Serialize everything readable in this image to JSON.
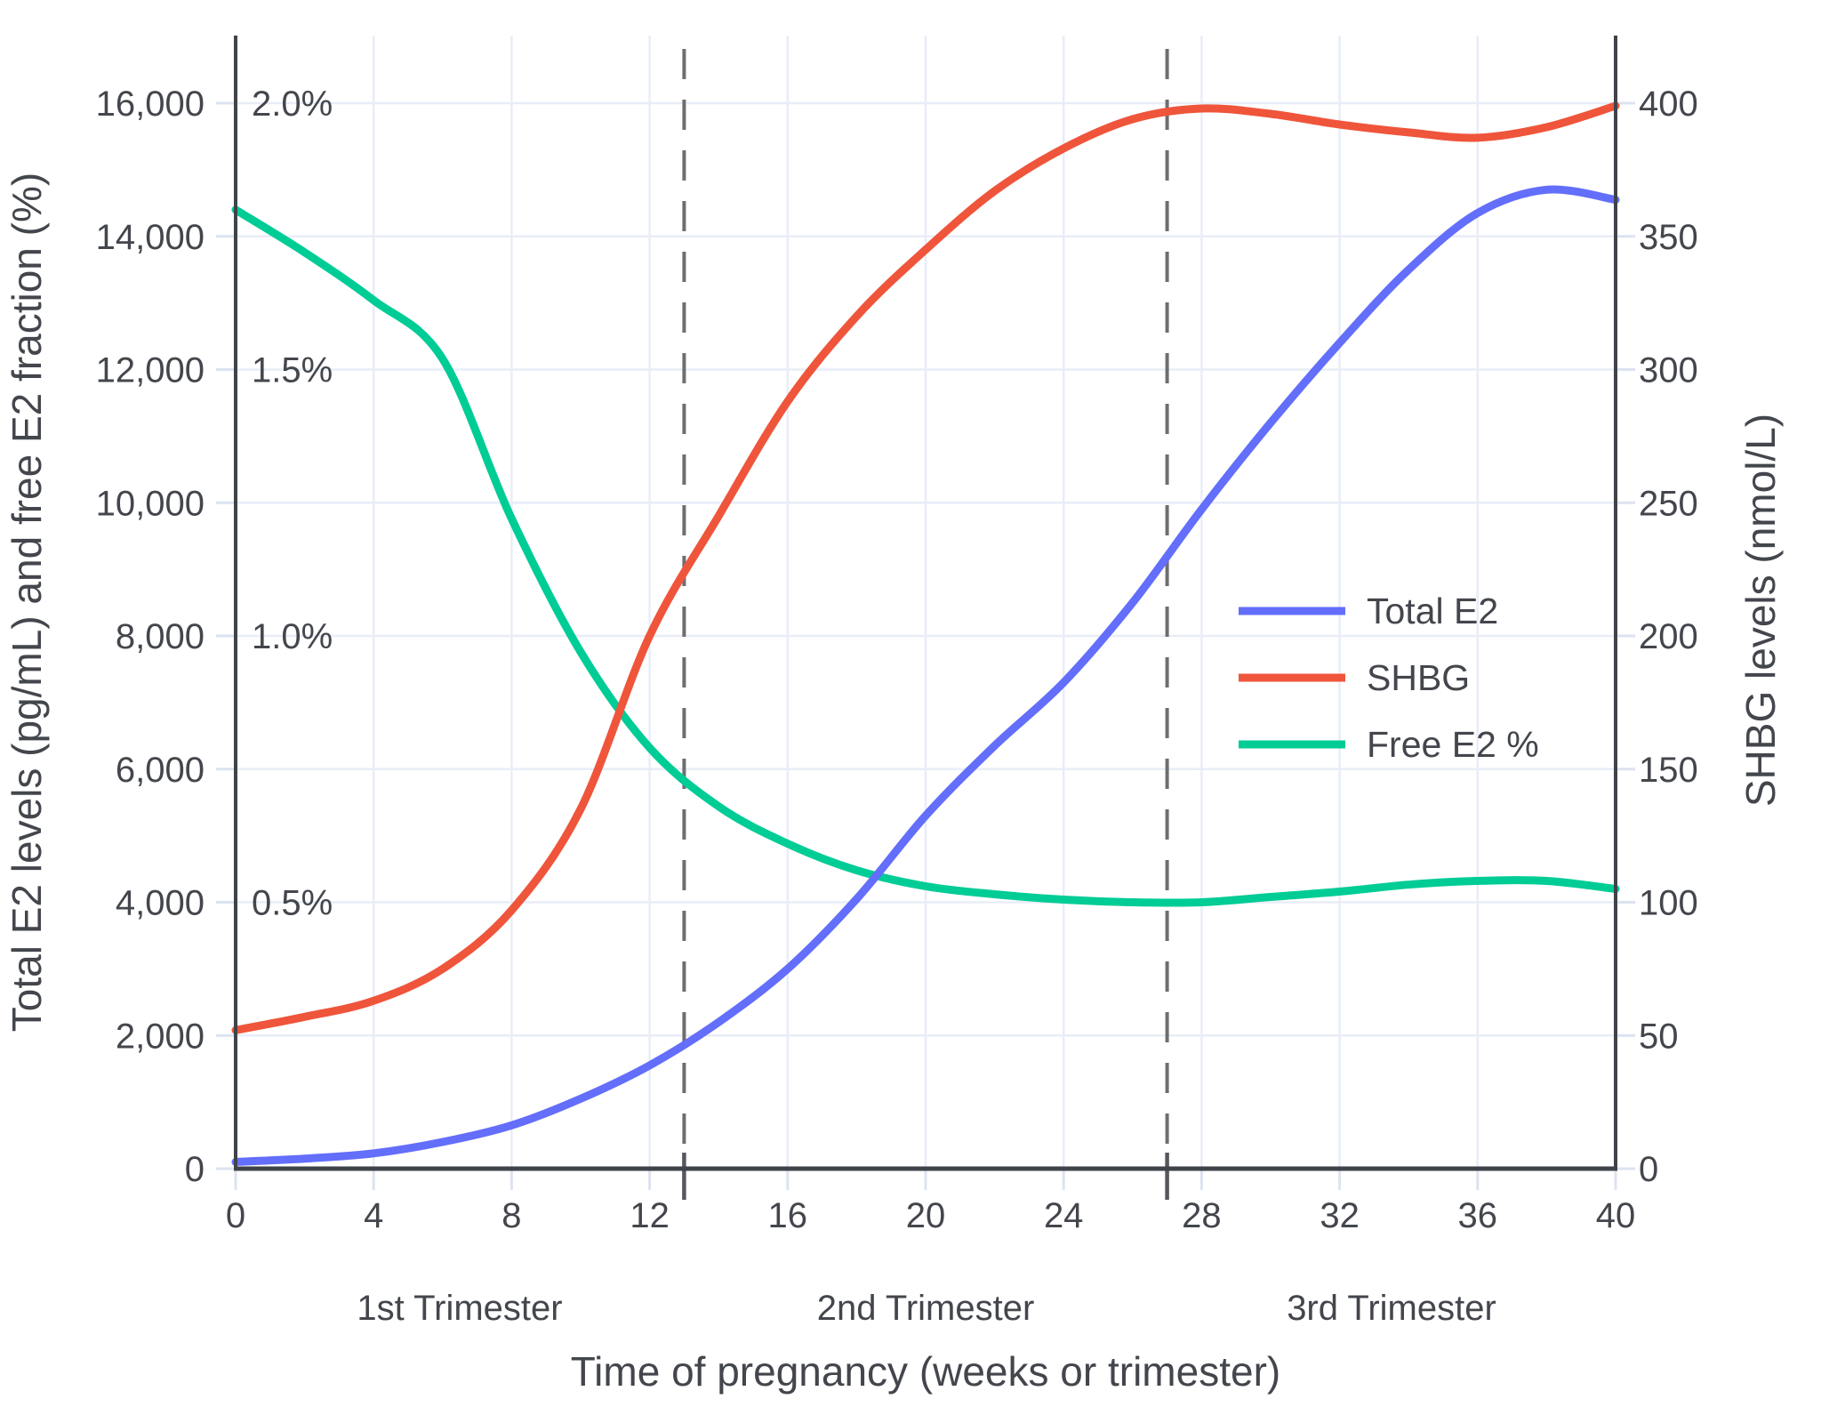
{
  "chart_data": {
    "type": "line",
    "title": "",
    "xlabel": "Time of pregnancy (weeks or trimester)",
    "ylabel_left": "Total E2 levels (pg/mL) and free E2 fraction (%)",
    "ylabel_right": "SHBG levels (nmol/L)",
    "x_weeks": [
      0,
      2,
      4,
      6,
      8,
      10,
      12,
      14,
      16,
      18,
      20,
      22,
      24,
      26,
      28,
      30,
      32,
      34,
      36,
      38,
      40
    ],
    "series": [
      {
        "name": "Total E2",
        "axis": "left_pgml",
        "color": "#636EFA",
        "values": [
          100,
          150,
          230,
          400,
          650,
          1050,
          1550,
          2200,
          3000,
          4050,
          5300,
          6350,
          7300,
          8500,
          9900,
          11200,
          12400,
          13500,
          14350,
          14700,
          14550
        ]
      },
      {
        "name": "SHBG",
        "axis": "right_nmoll",
        "color": "#EF553B",
        "values": [
          52,
          57,
          63,
          75,
          97,
          135,
          200,
          245,
          288,
          320,
          345,
          367,
          383,
          394,
          398,
          396,
          392,
          389,
          387,
          391,
          399
        ]
      },
      {
        "name": "Free E2 %",
        "axis": "left_percent",
        "color": "#00CC96",
        "values": [
          1.8,
          1.72,
          1.63,
          1.52,
          1.22,
          0.97,
          0.79,
          0.68,
          0.61,
          0.56,
          0.53,
          0.515,
          0.505,
          0.5,
          0.5,
          0.51,
          0.52,
          0.533,
          0.54,
          0.54,
          0.525
        ]
      }
    ],
    "x_tick_labels": [
      "0",
      "4",
      "8",
      "12",
      "16",
      "20",
      "24",
      "28",
      "32",
      "36",
      "40"
    ],
    "left_tick_labels": [
      "0",
      "2,000",
      "4,000",
      "6,000",
      "8,000",
      "10,000",
      "12,000",
      "14,000",
      "16,000"
    ],
    "left_percent_labels": [
      "0.5%",
      "1.0%",
      "1.5%",
      "2.0%"
    ],
    "right_tick_labels": [
      "0",
      "50",
      "100",
      "150",
      "200",
      "250",
      "300",
      "350",
      "400"
    ],
    "trimester_labels": [
      "1st Trimester",
      "2nd Trimester",
      "3rd Trimester"
    ],
    "trimester_boundaries_weeks": [
      13,
      27
    ],
    "xlim": [
      0,
      40
    ],
    "ylim_left": [
      0,
      17000
    ],
    "ylim_right": [
      0,
      425
    ],
    "percent_per_left_unit": 0.000125,
    "grid": true,
    "legend_position": "center-right",
    "colors": {
      "grid": "#E9EDF8",
      "tick": "#DCE3F0",
      "axis": "#3F434A",
      "dashed": "#6E6E6E",
      "text": "#43464C"
    }
  }
}
